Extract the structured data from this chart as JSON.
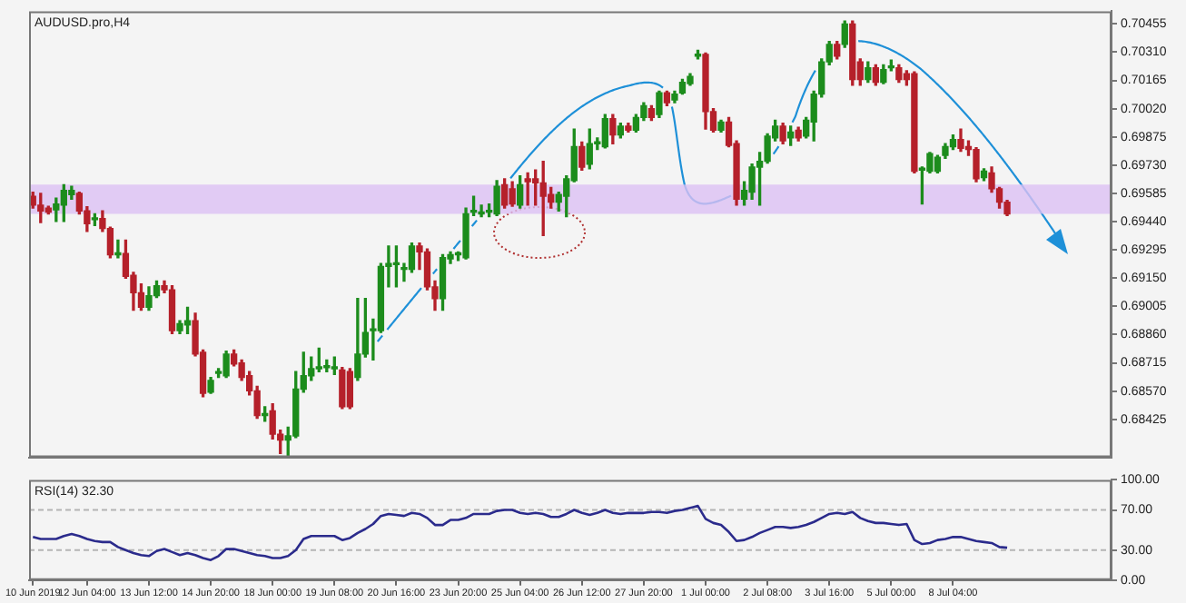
{
  "chart_data": [
    {
      "type": "candlestick",
      "title": "AUDUSD.pro,H4",
      "categories": [
        null,
        null,
        null,
        null,
        null,
        null,
        null,
        null,
        null,
        null,
        null,
        null,
        null,
        null,
        null,
        null,
        null,
        null,
        null,
        null,
        null,
        null,
        null,
        null,
        null,
        null,
        null,
        null,
        null,
        null,
        null,
        null,
        null,
        null,
        null,
        null,
        null,
        null,
        null,
        null,
        null,
        null,
        null,
        null,
        null,
        null,
        null,
        null,
        null,
        null,
        null,
        null,
        null,
        null,
        null,
        null,
        null,
        null,
        null,
        null,
        null,
        null,
        null,
        null,
        null,
        null,
        null,
        null,
        null,
        null,
        null,
        null,
        null,
        null,
        null,
        null,
        null,
        null,
        null,
        null,
        null,
        null,
        null,
        null,
        null,
        null,
        null,
        null,
        null,
        null,
        null,
        null,
        null,
        null,
        null,
        null,
        null,
        null,
        null,
        null,
        null,
        null,
        null,
        null,
        null,
        null,
        null,
        null,
        null,
        null,
        null,
        null,
        null,
        null,
        null,
        null,
        null,
        null,
        null,
        null,
        null,
        null,
        null,
        null,
        null,
        null,
        null,
        null,
        null,
        null,
        null,
        null,
        null,
        null,
        null,
        null,
        null,
        null,
        null,
        null
      ],
      "ohlc": [
        [
          0.6957,
          0.69591,
          0.6951,
          0.69525
        ],
        [
          0.69525,
          0.69585,
          0.69435,
          0.69495
        ],
        [
          0.6951,
          0.69519,
          0.6948,
          0.69489
        ],
        [
          0.69501,
          0.69561,
          0.69441,
          0.69531
        ],
        [
          0.69525,
          0.6963,
          0.69441,
          0.696
        ],
        [
          0.69579,
          0.69621,
          0.69555,
          0.696
        ],
        [
          0.69585,
          0.69591,
          0.6948,
          0.69495
        ],
        [
          0.69495,
          0.69516,
          0.6939,
          0.69429
        ],
        [
          0.6945,
          0.6948,
          0.6942,
          0.6945
        ],
        [
          0.69456,
          0.69495,
          0.6939,
          0.69405
        ],
        [
          0.69405,
          0.69411,
          0.69255,
          0.6927
        ],
        [
          0.6927,
          0.69345,
          0.69255,
          0.6927
        ],
        [
          0.69276,
          0.69345,
          0.6915,
          0.69159
        ],
        [
          0.69165,
          0.6918,
          0.68985,
          0.69075
        ],
        [
          0.69075,
          0.6912,
          0.68985,
          0.69
        ],
        [
          0.69,
          0.69105,
          0.68985,
          0.6906
        ],
        [
          0.6906,
          0.69135,
          0.69051,
          0.69111
        ],
        [
          0.69111,
          0.69135,
          0.69075,
          0.6909
        ],
        [
          0.6909,
          0.69111,
          0.68865,
          0.6888
        ],
        [
          0.6888,
          0.68931,
          0.68865,
          0.68916
        ],
        [
          0.6891,
          0.69,
          0.68865,
          0.68931
        ],
        [
          0.68931,
          0.6897,
          0.68751,
          0.6876
        ],
        [
          0.68769,
          0.68781,
          0.68541,
          0.68559
        ],
        [
          0.68565,
          0.6864,
          0.68559,
          0.68625
        ],
        [
          0.68661,
          0.68685,
          0.6864,
          0.68661
        ],
        [
          0.68649,
          0.68775,
          0.6864,
          0.6876
        ],
        [
          0.6876,
          0.68781,
          0.687,
          0.68709
        ],
        [
          0.68715,
          0.6873,
          0.68625,
          0.6864
        ],
        [
          0.68649,
          0.6867,
          0.6855,
          0.68571
        ],
        [
          0.68571,
          0.68595,
          0.6843,
          0.68445
        ],
        [
          0.68445,
          0.6849,
          0.68415,
          0.68445
        ],
        [
          0.68469,
          0.68505,
          0.68325,
          0.68349
        ],
        [
          0.68349,
          0.6837,
          0.6825,
          0.68319
        ],
        [
          0.68319,
          0.68385,
          0.68235,
          0.6834
        ],
        [
          0.6834,
          0.6867,
          0.68331,
          0.6858
        ],
        [
          0.6858,
          0.68769,
          0.68565,
          0.68649
        ],
        [
          0.68649,
          0.68745,
          0.68625,
          0.68685
        ],
        [
          0.68685,
          0.6879,
          0.6867,
          0.68685
        ],
        [
          0.68691,
          0.6873,
          0.6867,
          0.68691
        ],
        [
          0.68685,
          0.68745,
          0.68655,
          0.68685
        ],
        [
          0.68679,
          0.68691,
          0.68481,
          0.6849
        ],
        [
          0.6867,
          0.68685,
          0.68481,
          0.6849
        ],
        [
          0.6864,
          0.69045,
          0.68625,
          0.6876
        ],
        [
          0.6876,
          0.69045,
          0.68745,
          0.68871
        ],
        [
          0.6888,
          0.6894,
          0.6873,
          0.6888
        ],
        [
          0.6888,
          0.69225,
          0.68871,
          0.6921
        ],
        [
          0.6921,
          0.69315,
          0.69105,
          0.69225
        ],
        [
          0.69219,
          0.69315,
          0.69105,
          0.69219
        ],
        [
          0.69195,
          0.69225,
          0.69135,
          0.69195
        ],
        [
          0.69195,
          0.6933,
          0.6918,
          0.69315
        ],
        [
          0.69315,
          0.6933,
          0.69195,
          0.69285
        ],
        [
          0.69285,
          0.693,
          0.6909,
          0.69105
        ],
        [
          0.69105,
          0.69135,
          0.68985,
          0.69045
        ],
        [
          0.69045,
          0.6927,
          0.68985,
          0.69255
        ],
        [
          0.69249,
          0.69285,
          0.69225,
          0.6927
        ],
        [
          0.6927,
          0.69285,
          0.6924,
          0.6927
        ],
        [
          0.69255,
          0.6951,
          0.69249,
          0.6948
        ],
        [
          0.69489,
          0.6957,
          0.69471,
          0.69489
        ],
        [
          0.6948,
          0.69525,
          0.69465,
          0.6948
        ],
        [
          0.69489,
          0.69531,
          0.69465,
          0.69489
        ],
        [
          0.6948,
          0.69651,
          0.69471,
          0.69621
        ],
        [
          0.6963,
          0.6966,
          0.6951,
          0.69525
        ],
        [
          0.69609,
          0.69645,
          0.69519,
          0.69531
        ],
        [
          0.69525,
          0.69675,
          0.6951,
          0.6963
        ],
        [
          0.6966,
          0.6969,
          0.69525,
          0.69645
        ],
        [
          0.6966,
          0.69705,
          0.69525,
          0.69639
        ],
        [
          0.69639,
          0.6975,
          0.69369,
          0.6957
        ],
        [
          0.69579,
          0.69615,
          0.6951,
          0.6954
        ],
        [
          0.6954,
          0.69591,
          0.69495,
          0.69579
        ],
        [
          0.6957,
          0.69675,
          0.69465,
          0.6966
        ],
        [
          0.69651,
          0.69915,
          0.69645,
          0.69825
        ],
        [
          0.69825,
          0.69849,
          0.69705,
          0.6972
        ],
        [
          0.69735,
          0.69915,
          0.69711,
          0.6984
        ],
        [
          0.6984,
          0.6987,
          0.6981,
          0.6984
        ],
        [
          0.69825,
          0.6999,
          0.69819,
          0.69969
        ],
        [
          0.69969,
          0.6999,
          0.6984,
          0.69885
        ],
        [
          0.69885,
          0.69945,
          0.6987,
          0.6993
        ],
        [
          0.6993,
          0.69945,
          0.699,
          0.69909
        ],
        [
          0.69909,
          0.6999,
          0.699,
          0.69975
        ],
        [
          0.69975,
          0.7005,
          0.6996,
          0.70035
        ],
        [
          0.7002,
          0.70035,
          0.6996,
          0.69975
        ],
        [
          0.6999,
          0.7011,
          0.69975,
          0.70101
        ],
        [
          0.70101,
          0.7011,
          0.70035,
          0.7005
        ],
        [
          0.70065,
          0.7011,
          0.7005,
          0.70095
        ],
        [
          0.70101,
          0.7017,
          0.70095,
          0.70155
        ],
        [
          0.70149,
          0.702,
          0.7014,
          0.70185
        ],
        [
          0.7029,
          0.7032,
          0.70275,
          0.7029
        ],
        [
          0.70299,
          0.70305,
          0.69915,
          0.70005
        ],
        [
          0.70005,
          0.7002,
          0.699,
          0.69909
        ],
        [
          0.69909,
          0.6996,
          0.699,
          0.69951
        ],
        [
          0.69951,
          0.69975,
          0.69825,
          0.69831
        ],
        [
          0.6984,
          0.69855,
          0.69525,
          0.69555
        ],
        [
          0.69555,
          0.69645,
          0.69525,
          0.696
        ],
        [
          0.69591,
          0.69735,
          0.69555,
          0.6972
        ],
        [
          0.6972,
          0.69795,
          0.69525,
          0.6975
        ],
        [
          0.6975,
          0.69891,
          0.69741,
          0.69879
        ],
        [
          0.6987,
          0.6996,
          0.69855,
          0.6993
        ],
        [
          0.6993,
          0.69945,
          0.6984,
          0.69855
        ],
        [
          0.6987,
          0.6993,
          0.69831,
          0.699
        ],
        [
          0.69909,
          0.69924,
          0.69855,
          0.6987
        ],
        [
          0.69879,
          0.69975,
          0.6987,
          0.6996
        ],
        [
          0.69951,
          0.7011,
          0.69855,
          0.70095
        ],
        [
          0.70095,
          0.70275,
          0.7008,
          0.7026
        ],
        [
          0.7026,
          0.70365,
          0.70245,
          0.7035
        ],
        [
          0.7035,
          0.70365,
          0.70275,
          0.7029
        ],
        [
          0.7035,
          0.7047,
          0.70335,
          0.70455
        ],
        [
          0.70455,
          0.7047,
          0.7014,
          0.7017
        ],
        [
          0.7026,
          0.70275,
          0.7014,
          0.7017
        ],
        [
          0.7017,
          0.7026,
          0.70155,
          0.7023
        ],
        [
          0.7023,
          0.70245,
          0.7014,
          0.70155
        ],
        [
          0.70155,
          0.70245,
          0.70149,
          0.70221
        ],
        [
          0.7023,
          0.70269,
          0.70215,
          0.7023
        ],
        [
          0.7023,
          0.70245,
          0.70155,
          0.7017
        ],
        [
          0.702,
          0.70215,
          0.7014,
          0.7017
        ],
        [
          0.702,
          0.70209,
          0.6969,
          0.69699
        ],
        [
          0.69705,
          0.6972,
          0.69531,
          0.69705
        ],
        [
          0.69699,
          0.69795,
          0.6969,
          0.69789
        ],
        [
          0.69699,
          0.6978,
          0.6969,
          0.69771
        ],
        [
          0.6978,
          0.6984,
          0.69765,
          0.69825
        ],
        [
          0.69825,
          0.69885,
          0.6981,
          0.69861
        ],
        [
          0.69861,
          0.69915,
          0.69801,
          0.69816
        ],
        [
          0.69825,
          0.69855,
          0.6978,
          0.6981
        ],
        [
          0.6981,
          0.69819,
          0.69645,
          0.6966
        ],
        [
          0.69666,
          0.69711,
          0.69651,
          0.69699
        ],
        [
          0.6969,
          0.6972,
          0.69591,
          0.69609
        ],
        [
          0.69609,
          0.69615,
          0.6951,
          0.6954
        ],
        [
          0.6954,
          0.69549,
          0.69471,
          0.6948
        ],
        null,
        null,
        null,
        null,
        null,
        null,
        null,
        null,
        null,
        null,
        null,
        null,
        null
      ],
      "colors": [
        "#b5202a",
        "#b5202a",
        "#b5202a",
        "#1c8c1c",
        "#1c8c1c",
        "#1c8c1c",
        "#b5202a",
        "#b5202a",
        "#1c8c1c",
        "#b5202a",
        "#b5202a",
        "#1c8c1c",
        "#b5202a",
        "#b5202a",
        "#b5202a",
        "#1c8c1c",
        "#1c8c1c",
        "#b5202a",
        "#b5202a",
        "#1c8c1c",
        "#1c8c1c",
        "#b5202a",
        "#b5202a",
        "#1c8c1c",
        "#1c8c1c",
        "#1c8c1c",
        "#b5202a",
        "#b5202a",
        "#b5202a",
        "#b5202a",
        "#1c8c1c",
        "#b5202a",
        "#b5202a",
        "#1c8c1c",
        "#1c8c1c",
        "#1c8c1c",
        "#1c8c1c",
        "#1c8c1c",
        "#1c8c1c",
        "#1c8c1c",
        "#b5202a",
        "#b5202a",
        "#1c8c1c",
        "#1c8c1c",
        "#1c8c1c",
        "#1c8c1c",
        "#1c8c1c",
        "#1c8c1c",
        "#1c8c1c",
        "#1c8c1c",
        "#b5202a",
        "#b5202a",
        "#b5202a",
        "#1c8c1c",
        "#1c8c1c",
        "#1c8c1c",
        "#1c8c1c",
        "#1c8c1c",
        "#1c8c1c",
        "#1c8c1c",
        "#1c8c1c",
        "#b5202a",
        "#b5202a",
        "#1c8c1c",
        "#b5202a",
        "#b5202a",
        "#b5202a",
        "#b5202a",
        "#1c8c1c",
        "#1c8c1c",
        "#1c8c1c",
        "#b5202a",
        "#1c8c1c",
        "#1c8c1c",
        "#1c8c1c",
        "#b5202a",
        "#1c8c1c",
        "#b5202a",
        "#1c8c1c",
        "#1c8c1c",
        "#b5202a",
        "#1c8c1c",
        "#b5202a",
        "#1c8c1c",
        "#1c8c1c",
        "#1c8c1c",
        "#1c8c1c",
        "#b5202a",
        "#b5202a",
        "#1c8c1c",
        "#b5202a",
        "#b5202a",
        "#1c8c1c",
        "#1c8c1c",
        "#1c8c1c",
        "#1c8c1c",
        "#1c8c1c",
        "#b5202a",
        "#1c8c1c",
        "#b5202a",
        "#1c8c1c",
        "#1c8c1c",
        "#1c8c1c",
        "#1c8c1c",
        "#b5202a",
        "#1c8c1c",
        "#b5202a",
        "#b5202a",
        "#1c8c1c",
        "#b5202a",
        "#1c8c1c",
        "#1c8c1c",
        "#b5202a",
        "#b5202a",
        "#b5202a",
        "#1c8c1c",
        "#1c8c1c",
        "#1c8c1c",
        "#1c8c1c",
        "#1c8c1c",
        "#b5202a",
        "#b5202a",
        "#b5202a",
        "#1c8c1c",
        "#b5202a",
        "#b5202a",
        "#b5202a",
        null,
        null,
        null,
        null,
        null,
        null,
        null,
        null,
        null,
        null,
        null,
        null,
        null
      ],
      "ylim": [
        0.6823,
        0.7052
      ],
      "yticks": [
        {
          "value": 0.70455,
          "label": "0.70455"
        },
        {
          "value": 0.7031,
          "label": "0.70310"
        },
        {
          "value": 0.70165,
          "label": "0.70165"
        },
        {
          "value": 0.7002,
          "label": "0.70020"
        },
        {
          "value": 0.69875,
          "label": "0.69875"
        },
        {
          "value": 0.6973,
          "label": "0.69730"
        },
        {
          "value": 0.69585,
          "label": "0.69585"
        },
        {
          "value": 0.6944,
          "label": "0.69440"
        },
        {
          "value": 0.69295,
          "label": "0.69295"
        },
        {
          "value": 0.6915,
          "label": "0.69150"
        },
        {
          "value": 0.69005,
          "label": "0.69005"
        },
        {
          "value": 0.6886,
          "label": "0.68860"
        },
        {
          "value": 0.68715,
          "label": "0.68715"
        },
        {
          "value": 0.6857,
          "label": "0.68570"
        },
        {
          "value": 0.68425,
          "label": "0.68425"
        }
      ],
      "bands": [
        {
          "axis": "y",
          "from": 0.6948,
          "to": 0.6963,
          "color": "#dcc0f4"
        }
      ],
      "grid": false,
      "legend": false,
      "tick_labels": "y"
    },
    {
      "type": "line",
      "title": "RSI(14) 32.30",
      "color": "#2b2b8c",
      "marker": "none",
      "categories": [
        "10 Jun 2019",
        null,
        null,
        null,
        null,
        null,
        null,
        "12 Jun 04:00",
        null,
        null,
        null,
        null,
        null,
        null,
        null,
        "13 Jun 12:00",
        null,
        null,
        null,
        null,
        null,
        null,
        null,
        "14 Jun 20:00",
        null,
        null,
        null,
        null,
        null,
        null,
        null,
        "18 Jun 00:00",
        null,
        null,
        null,
        null,
        null,
        null,
        null,
        "19 Jun 08:00",
        null,
        null,
        null,
        null,
        null,
        null,
        null,
        "20 Jun 16:00",
        null,
        null,
        null,
        null,
        null,
        null,
        null,
        "23 Jun 20:00",
        null,
        null,
        null,
        null,
        null,
        null,
        null,
        "25 Jun 04:00",
        null,
        null,
        null,
        null,
        null,
        null,
        null,
        "26 Jun 12:00",
        null,
        null,
        null,
        null,
        null,
        null,
        null,
        "27 Jun 20:00",
        null,
        null,
        null,
        null,
        null,
        null,
        null,
        "1 Jul 00:00",
        null,
        null,
        null,
        null,
        null,
        null,
        null,
        "2 Jul 08:00",
        null,
        null,
        null,
        null,
        null,
        null,
        null,
        "3 Jul 16:00",
        null,
        null,
        null,
        null,
        null,
        null,
        null,
        "5 Jul 00:00",
        null,
        null,
        null,
        null,
        null,
        null,
        null,
        "8 Jul 04:00",
        null,
        null,
        null,
        null,
        null,
        null,
        null,
        null,
        null,
        null,
        null,
        null,
        null,
        null,
        null,
        null,
        null,
        null,
        null,
        null
      ],
      "values": [
        43,
        41,
        41,
        41,
        44,
        46,
        44,
        41,
        39,
        38,
        38,
        33,
        30,
        27,
        25,
        24,
        29,
        31,
        28,
        25,
        27,
        25,
        22,
        20,
        24,
        31,
        31,
        29,
        27,
        25,
        24,
        22,
        22,
        24,
        30,
        41,
        44,
        44,
        44,
        44,
        40,
        42,
        47,
        51,
        56,
        64,
        66,
        65,
        64,
        67,
        66,
        62,
        55,
        55,
        60,
        60,
        62,
        66,
        66,
        66,
        69,
        70,
        70,
        67,
        66,
        67,
        66,
        63,
        63,
        66,
        70,
        67,
        65,
        67,
        70,
        67,
        66,
        67,
        67,
        67,
        68,
        68,
        67,
        69,
        70,
        72,
        74,
        61,
        57,
        55,
        48,
        39,
        40,
        43,
        47,
        50,
        53,
        53,
        52,
        53,
        55,
        58,
        62,
        66,
        67,
        66,
        68,
        62,
        59,
        57,
        57,
        56,
        55,
        56,
        40,
        36,
        37,
        40,
        41,
        43,
        43,
        41,
        39,
        38,
        37,
        33,
        32.3,
        null,
        null,
        null,
        null,
        null,
        null,
        null,
        null,
        null,
        null,
        null,
        null,
        null
      ],
      "ylim": [
        0,
        100
      ],
      "yticks": [
        {
          "value": 100,
          "label": "100.00"
        },
        {
          "value": 70,
          "label": "70.00"
        },
        {
          "value": 30,
          "label": "30.00"
        },
        {
          "value": 0,
          "label": "0.00"
        }
      ],
      "ref_lines": [
        {
          "axis": "y",
          "value": 70,
          "color": "#b4b4b4",
          "line_style": "dashed"
        },
        {
          "axis": "y",
          "value": 30,
          "color": "#b4b4b4",
          "line_style": "dashed"
        }
      ],
      "grid": false,
      "legend": false
    }
  ]
}
